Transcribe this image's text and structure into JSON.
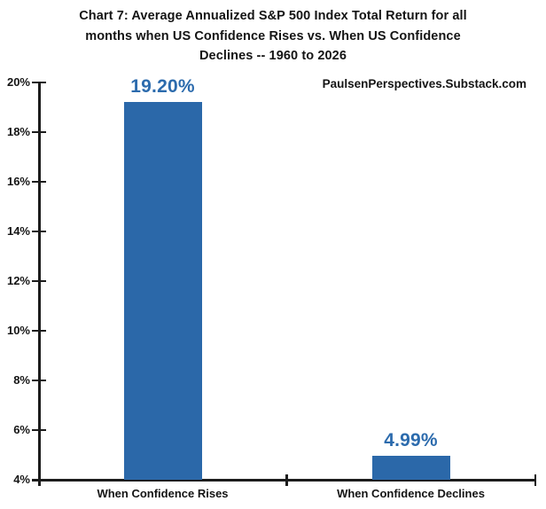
{
  "title_lines": [
    "Chart 7: Average Annualized S&P 500 Index Total Return for all",
    "months when US Confidence Rises vs. When US Confidence",
    "Declines -- 1960 to 2026"
  ],
  "watermark": "PaulsenPerspectives.Substack.com",
  "chart_data": {
    "type": "bar",
    "title": "Chart 7: Average Annualized S&P 500 Index Total Return for all months when US Confidence Rises vs. When US Confidence Declines -- 1960 to 2026",
    "categories": [
      "When Confidence Rises",
      "When Confidence Declines"
    ],
    "values": [
      19.2,
      4.99
    ],
    "value_labels": [
      "19.20%",
      "4.99%"
    ],
    "xlabel": "",
    "ylabel": "",
    "ylim": [
      4,
      20
    ],
    "ytick_values": [
      4,
      6,
      8,
      10,
      12,
      14,
      16,
      18,
      20
    ],
    "ytick_labels": [
      "4%",
      "6%",
      "8%",
      "10%",
      "12%",
      "14%",
      "16%",
      "18%",
      "20%"
    ],
    "grid": false,
    "legend": "none",
    "bar_color": "#2b68a9",
    "value_label_color": "#2c6bad",
    "axis_color": "#1c1c1c"
  }
}
